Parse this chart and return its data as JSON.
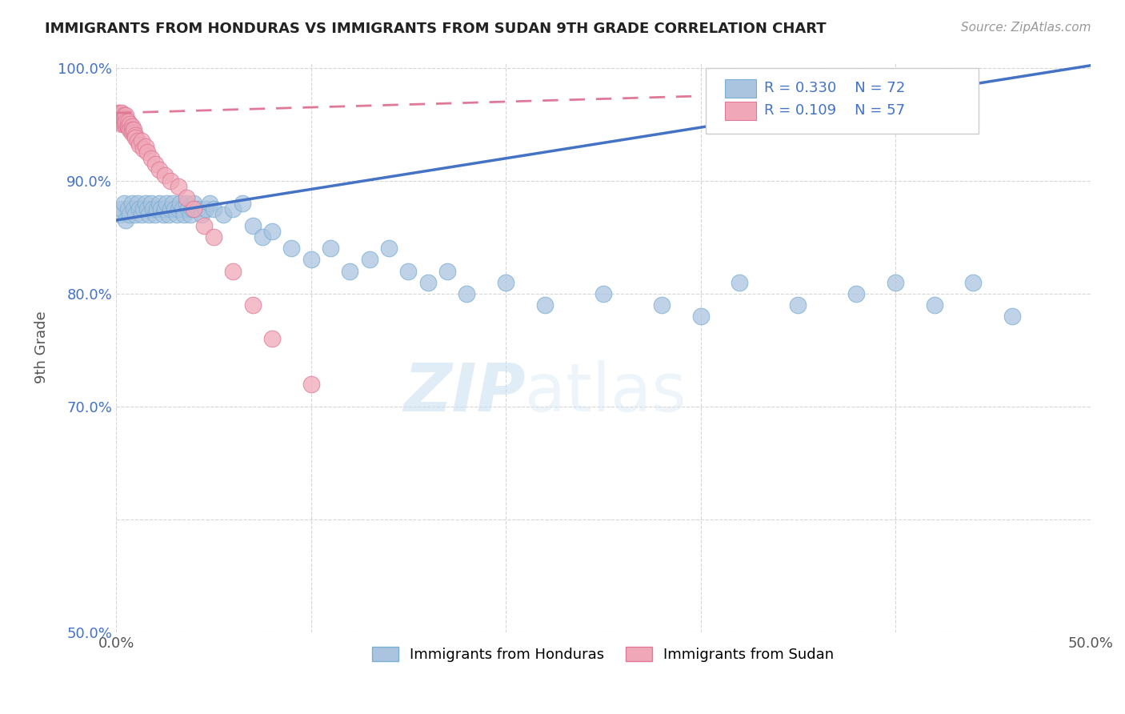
{
  "title": "IMMIGRANTS FROM HONDURAS VS IMMIGRANTS FROM SUDAN 9TH GRADE CORRELATION CHART",
  "source": "Source: ZipAtlas.com",
  "ylabel": "9th Grade",
  "xlim": [
    0.0,
    0.5
  ],
  "ylim": [
    0.5,
    1.005
  ],
  "blue_color": "#aac4df",
  "pink_color": "#f0a8b8",
  "blue_edge": "#7aafd4",
  "pink_edge": "#e07898",
  "trend_blue": "#4472c4",
  "trend_pink": "#e07898",
  "legend_label_blue": "Immigrants from Honduras",
  "legend_label_pink": "Immigrants from Sudan",
  "blue_x": [
    0.002,
    0.003,
    0.004,
    0.005,
    0.006,
    0.007,
    0.008,
    0.009,
    0.01,
    0.011,
    0.012,
    0.013,
    0.014,
    0.015,
    0.016,
    0.017,
    0.018,
    0.019,
    0.02,
    0.021,
    0.022,
    0.023,
    0.024,
    0.025,
    0.026,
    0.027,
    0.028,
    0.029,
    0.03,
    0.031,
    0.032,
    0.033,
    0.034,
    0.035,
    0.036,
    0.037,
    0.038,
    0.039,
    0.04,
    0.042,
    0.044,
    0.046,
    0.048,
    0.05,
    0.055,
    0.06,
    0.065,
    0.07,
    0.075,
    0.08,
    0.09,
    0.1,
    0.11,
    0.12,
    0.13,
    0.14,
    0.15,
    0.16,
    0.17,
    0.18,
    0.2,
    0.22,
    0.25,
    0.28,
    0.3,
    0.32,
    0.35,
    0.38,
    0.4,
    0.42,
    0.44,
    0.46
  ],
  "blue_y": [
    0.87,
    0.875,
    0.88,
    0.865,
    0.875,
    0.87,
    0.88,
    0.875,
    0.87,
    0.88,
    0.875,
    0.87,
    0.875,
    0.88,
    0.875,
    0.87,
    0.88,
    0.875,
    0.87,
    0.875,
    0.88,
    0.875,
    0.87,
    0.875,
    0.88,
    0.87,
    0.875,
    0.88,
    0.875,
    0.87,
    0.875,
    0.88,
    0.875,
    0.87,
    0.88,
    0.875,
    0.87,
    0.875,
    0.88,
    0.875,
    0.87,
    0.875,
    0.88,
    0.875,
    0.87,
    0.875,
    0.88,
    0.86,
    0.85,
    0.855,
    0.84,
    0.83,
    0.84,
    0.82,
    0.83,
    0.84,
    0.82,
    0.81,
    0.82,
    0.8,
    0.81,
    0.79,
    0.8,
    0.79,
    0.78,
    0.81,
    0.79,
    0.8,
    0.81,
    0.79,
    0.81,
    0.78
  ],
  "pink_x": [
    0.001,
    0.001,
    0.001,
    0.002,
    0.002,
    0.002,
    0.002,
    0.003,
    0.003,
    0.003,
    0.003,
    0.003,
    0.003,
    0.004,
    0.004,
    0.004,
    0.004,
    0.004,
    0.005,
    0.005,
    0.005,
    0.005,
    0.005,
    0.006,
    0.006,
    0.006,
    0.006,
    0.007,
    0.007,
    0.007,
    0.008,
    0.008,
    0.008,
    0.009,
    0.009,
    0.01,
    0.01,
    0.011,
    0.012,
    0.013,
    0.014,
    0.015,
    0.016,
    0.018,
    0.02,
    0.022,
    0.025,
    0.028,
    0.032,
    0.036,
    0.04,
    0.045,
    0.05,
    0.06,
    0.07,
    0.08,
    0.1
  ],
  "pink_y": [
    0.96,
    0.955,
    0.958,
    0.952,
    0.955,
    0.958,
    0.96,
    0.952,
    0.955,
    0.958,
    0.96,
    0.95,
    0.955,
    0.952,
    0.955,
    0.958,
    0.95,
    0.955,
    0.952,
    0.955,
    0.958,
    0.95,
    0.952,
    0.948,
    0.95,
    0.952,
    0.948,
    0.948,
    0.95,
    0.945,
    0.948,
    0.945,
    0.942,
    0.942,
    0.945,
    0.94,
    0.938,
    0.935,
    0.932,
    0.935,
    0.928,
    0.93,
    0.925,
    0.92,
    0.915,
    0.91,
    0.905,
    0.9,
    0.895,
    0.885,
    0.875,
    0.86,
    0.85,
    0.82,
    0.79,
    0.76,
    0.72
  ],
  "blue_trend_x0": 0.0,
  "blue_trend_y0": 0.865,
  "blue_trend_x1": 0.5,
  "blue_trend_y1": 1.002,
  "pink_trend_x0": 0.0,
  "pink_trend_y0": 0.96,
  "pink_trend_x1": 0.3,
  "pink_trend_y1": 0.975
}
